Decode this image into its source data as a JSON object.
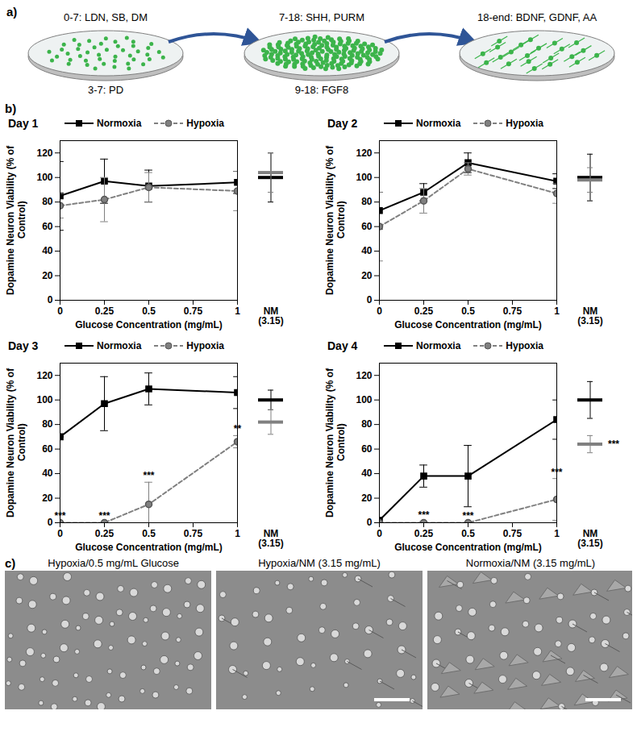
{
  "panel_a": {
    "label": "a)",
    "stages": [
      {
        "top": "0-7: LDN, SB, DM",
        "bottom": "3-7: PD"
      },
      {
        "top": "7-18: SHH, PURM",
        "bottom": "9-18: FGF8"
      },
      {
        "top": "18-end: BDNF, GDNF, AA"
      }
    ]
  },
  "panel_b_label": "b)",
  "chart_data": [
    {
      "type": "line",
      "title": "Day 1",
      "xlabel": "Glucose Concentration (mg/mL)",
      "ylabel": "Dopamine Neuron Viability (% of Control)",
      "x": [
        0,
        0.25,
        0.5,
        1
      ],
      "xlim": [
        0,
        1
      ],
      "xticks": [
        0,
        0.25,
        0.5,
        0.75,
        1
      ],
      "ylim": [
        0,
        130
      ],
      "yticks": [
        0,
        20,
        40,
        60,
        80,
        100,
        120
      ],
      "legend": "top",
      "nm_label": "NM (3.15)",
      "series": [
        {
          "name": "Normoxia",
          "color": "#000000",
          "marker": "square",
          "line_style": "solid",
          "values": [
            85,
            97,
            93,
            96
          ],
          "errors": [
            28,
            18,
            13,
            9
          ],
          "significance": [
            null,
            null,
            null,
            null
          ],
          "nm_value": 100,
          "nm_error": 20,
          "nm_significance": null
        },
        {
          "name": "Hypoxia",
          "color": "#808080",
          "marker": "circle",
          "line_style": "dashed",
          "values": [
            77,
            82,
            92,
            89
          ],
          "errors": [
            10,
            18,
            12,
            16
          ],
          "significance": [
            null,
            null,
            null,
            null
          ],
          "nm_value": 104,
          "nm_error": 16,
          "nm_significance": null
        }
      ]
    },
    {
      "type": "line",
      "title": "Day 2",
      "xlabel": "Glucose Concentration (mg/mL)",
      "ylabel": "Dopamine Neuron Viability (% of Control)",
      "x": [
        0,
        0.25,
        0.5,
        1
      ],
      "xlim": [
        0,
        1
      ],
      "xticks": [
        0,
        0.25,
        0.5,
        0.75,
        1
      ],
      "ylim": [
        0,
        130
      ],
      "yticks": [
        0,
        20,
        40,
        60,
        80,
        100,
        120
      ],
      "legend": "top",
      "nm_label": "NM (3.15)",
      "series": [
        {
          "name": "Normoxia",
          "color": "#000000",
          "marker": "square",
          "line_style": "solid",
          "values": [
            73,
            88,
            112,
            97
          ],
          "errors": [
            15,
            7,
            8,
            6
          ],
          "significance": [
            null,
            null,
            null,
            null
          ],
          "nm_value": 100,
          "nm_error": 19,
          "nm_significance": null
        },
        {
          "name": "Hypoxia",
          "color": "#808080",
          "marker": "circle",
          "line_style": "dashed",
          "values": [
            60,
            81,
            107,
            87
          ],
          "errors": [
            28,
            10,
            5,
            8
          ],
          "significance": [
            null,
            null,
            null,
            null
          ],
          "nm_value": 98,
          "nm_error": 10,
          "nm_significance": null
        }
      ]
    },
    {
      "type": "line",
      "title": "Day 3",
      "xlabel": "Glucose Concentration (mg/mL)",
      "ylabel": "Dopamine Neuron Viability (% of Control)",
      "x": [
        0,
        0.25,
        0.5,
        1
      ],
      "xlim": [
        0,
        1
      ],
      "xticks": [
        0,
        0.25,
        0.5,
        0.75,
        1
      ],
      "ylim": [
        0,
        130
      ],
      "yticks": [
        0,
        20,
        40,
        60,
        80,
        100,
        120
      ],
      "legend": "top",
      "nm_label": "NM (3.15)",
      "series": [
        {
          "name": "Normoxia",
          "color": "#000000",
          "marker": "square",
          "line_style": "solid",
          "values": [
            70,
            97,
            109,
            106
          ],
          "errors": [
            0,
            22,
            13,
            13
          ],
          "significance": [
            null,
            null,
            null,
            null
          ],
          "nm_value": 100,
          "nm_error": 8,
          "nm_significance": null
        },
        {
          "name": "Hypoxia",
          "color": "#808080",
          "marker": "circle",
          "line_style": "dashed",
          "values": [
            0,
            0,
            15,
            66
          ],
          "errors": [
            0,
            0,
            18,
            5
          ],
          "significance": [
            "***",
            "***",
            "***",
            "**"
          ],
          "nm_value": 82,
          "nm_error": 10,
          "nm_significance": null
        }
      ]
    },
    {
      "type": "line",
      "title": "Day 4",
      "xlabel": "Glucose Concentration (mg/mL)",
      "ylabel": "Dopamine Neuron Viability (% of Control)",
      "x": [
        0,
        0.25,
        0.5,
        1
      ],
      "xlim": [
        0,
        1
      ],
      "xticks": [
        0,
        0.25,
        0.5,
        0.75,
        1
      ],
      "ylim": [
        0,
        130
      ],
      "yticks": [
        0,
        20,
        40,
        60,
        80,
        100,
        120
      ],
      "legend": "top",
      "nm_label": "NM (3.15)",
      "series": [
        {
          "name": "Normoxia",
          "color": "#000000",
          "marker": "square",
          "line_style": "solid",
          "values": [
            2,
            38,
            38,
            84
          ],
          "errors": [
            2,
            9,
            25,
            16
          ],
          "significance": [
            null,
            null,
            null,
            null
          ],
          "nm_value": 100,
          "nm_error": 15,
          "nm_significance": null
        },
        {
          "name": "Hypoxia",
          "color": "#808080",
          "marker": "circle",
          "line_style": "dashed",
          "values": [
            0,
            0,
            0,
            19
          ],
          "errors": [
            0,
            1,
            0,
            17
          ],
          "significance": [
            null,
            "***",
            "***",
            "***"
          ],
          "nm_value": 64,
          "nm_error": 7,
          "nm_significance": "***"
        }
      ]
    }
  ],
  "panel_c": {
    "label": "c)",
    "images": [
      {
        "caption": "Hypoxia/0.5 mg/mL Glucose"
      },
      {
        "caption": "Hypoxia/NM (3.15 mg/mL)"
      },
      {
        "caption": "Normoxia/NM (3.15 mg/mL)"
      }
    ]
  }
}
